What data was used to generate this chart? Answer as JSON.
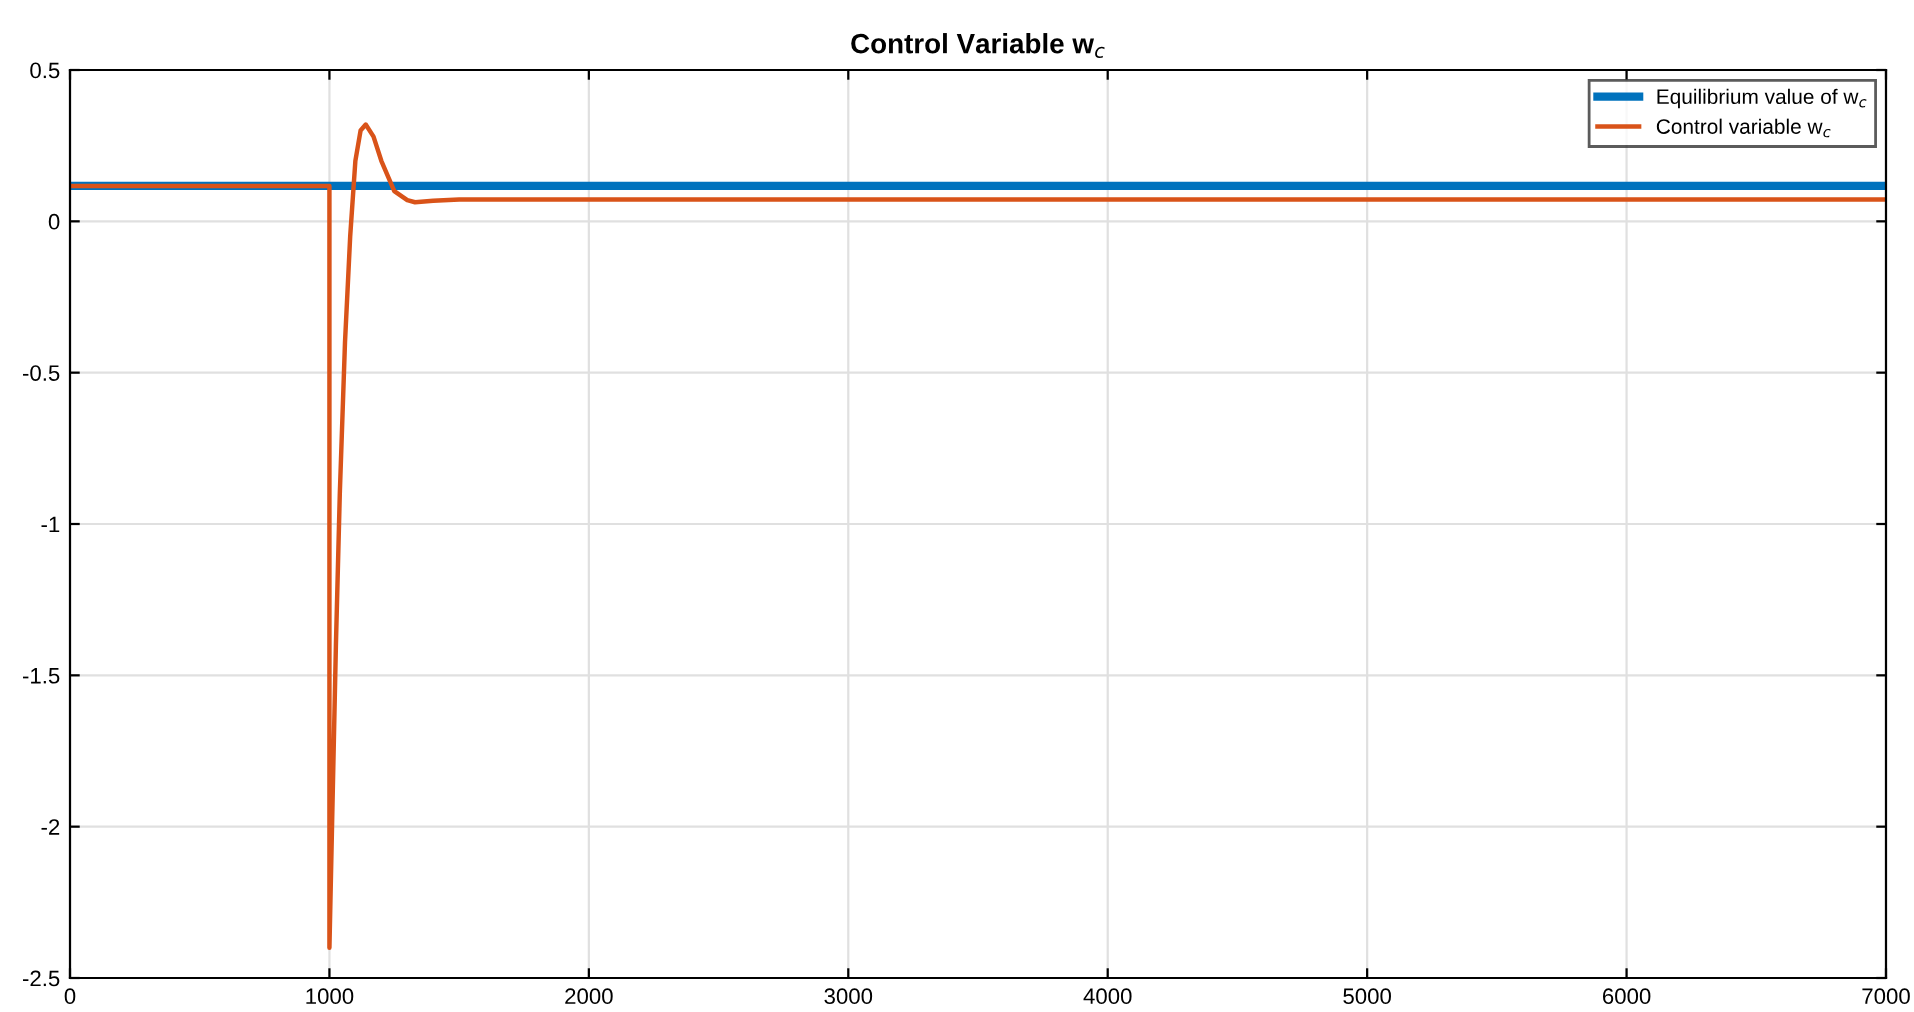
{
  "chart_data": {
    "type": "line",
    "title": "Control Variable w$_{c}$",
    "xlim": [
      0,
      7000
    ],
    "ylim": [
      -2.5,
      0.5
    ],
    "xticks": [
      0,
      1000,
      2000,
      3000,
      4000,
      5000,
      6000,
      7000
    ],
    "yticks": [
      -2.5,
      -2,
      -1.5,
      -1,
      -0.5,
      0,
      0.5
    ],
    "grid": true,
    "legend": "top right",
    "series": [
      {
        "name": "Equilibrium value of w$_{c}$",
        "color": "#0072bd",
        "x": [
          0,
          7000
        ],
        "values": [
          0.117,
          0.117
        ]
      },
      {
        "name": "Control variable w$_{c}$",
        "color": "#d95319",
        "x": [
          0,
          1000,
          1000,
          1010,
          1025,
          1040,
          1060,
          1080,
          1100,
          1120,
          1140,
          1170,
          1200,
          1250,
          1300,
          1330,
          1400,
          1500,
          7000
        ],
        "values": [
          0.117,
          0.117,
          -2.4,
          -2.0,
          -1.4,
          -0.9,
          -0.4,
          -0.05,
          0.2,
          0.3,
          0.32,
          0.28,
          0.2,
          0.1,
          0.07,
          0.063,
          0.068,
          0.072,
          0.072
        ]
      }
    ]
  }
}
